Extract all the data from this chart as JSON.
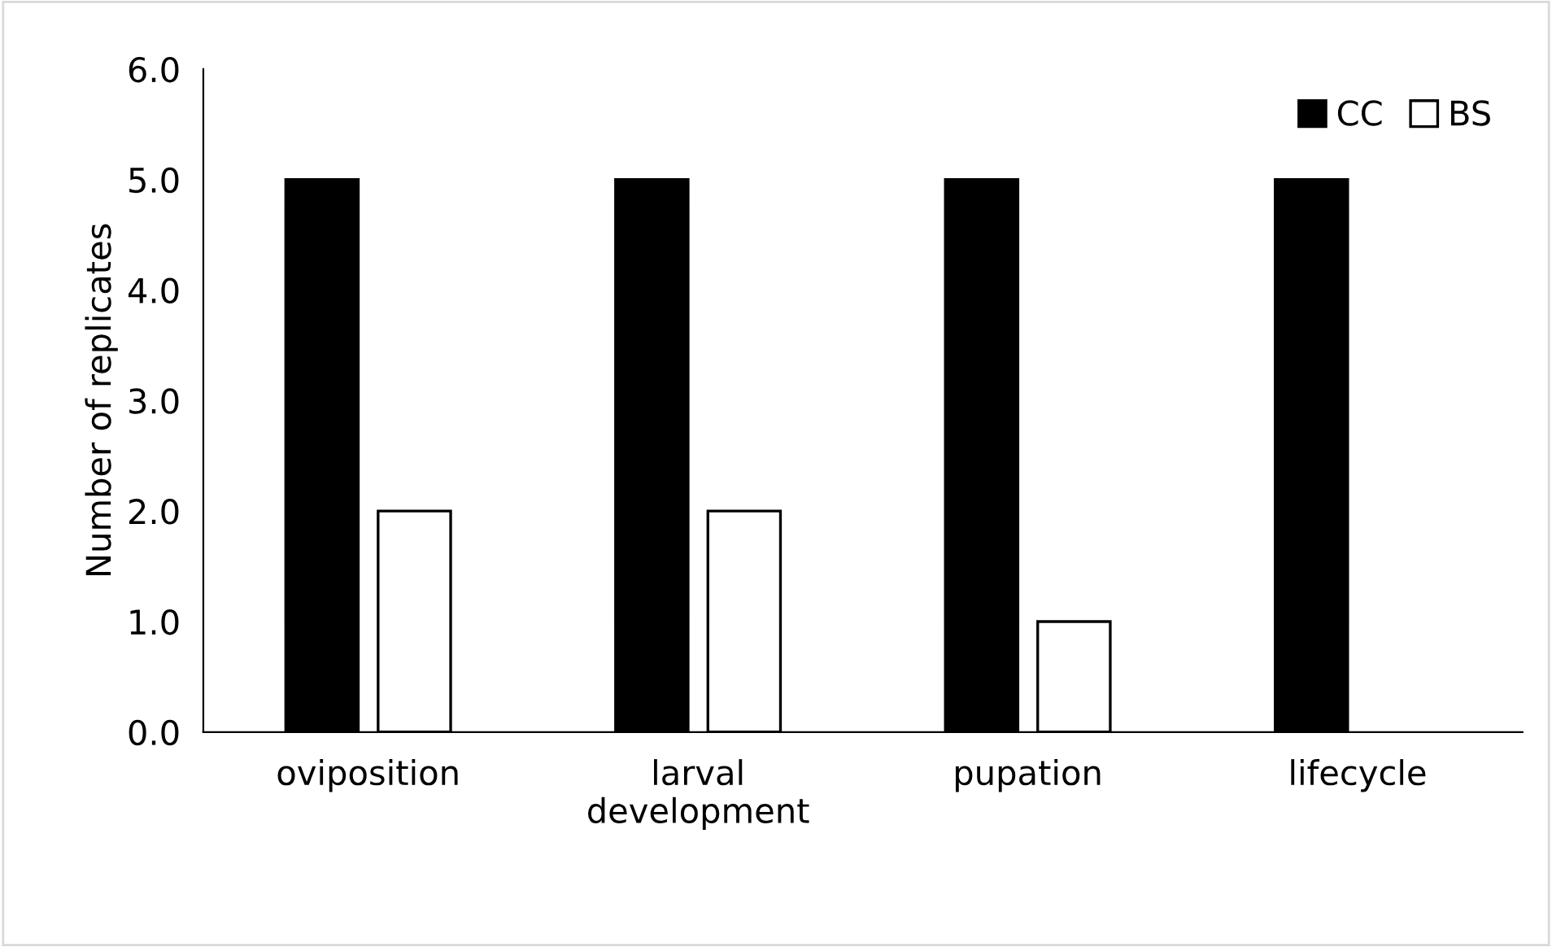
{
  "chart_data": {
    "type": "bar",
    "ylabel": "Number of replicates",
    "categories": [
      "oviposition",
      "larval\ndevelopment",
      "pupation",
      "lifecycle"
    ],
    "series": [
      {
        "name": "CC",
        "color": "#000000",
        "values": [
          5,
          5,
          5,
          5
        ]
      },
      {
        "name": "BS",
        "color": "#ffffff",
        "values": [
          2,
          2,
          1,
          0
        ]
      }
    ],
    "ylim": [
      0,
      6
    ],
    "yticks": [
      {
        "value": 0,
        "label": "0.0"
      },
      {
        "value": 1,
        "label": "1.0"
      },
      {
        "value": 2,
        "label": "2.0"
      },
      {
        "value": 3,
        "label": "3.0"
      },
      {
        "value": 4,
        "label": "4.0"
      },
      {
        "value": 5,
        "label": "5.0"
      },
      {
        "value": 6,
        "label": "6.0"
      }
    ],
    "grid": false,
    "legend": "top right"
  }
}
